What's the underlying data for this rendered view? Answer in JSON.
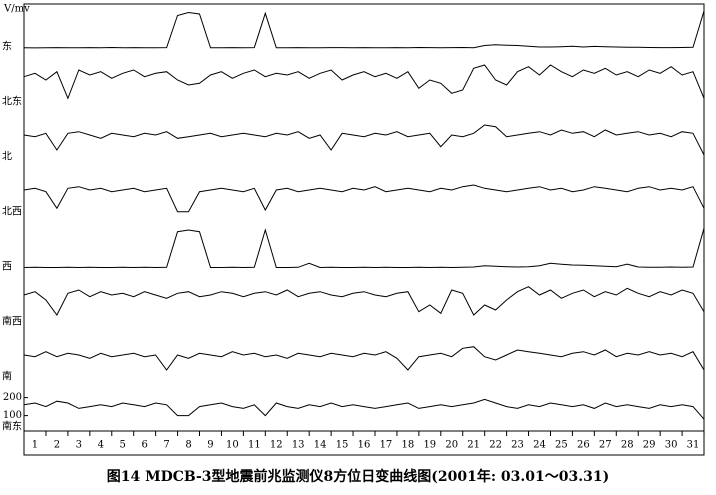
{
  "chart_data": {
    "type": "line",
    "title": "图14  MDCB-3型地震前兆监测仪8方位日变曲线图(2001年: 03.01～03.31)",
    "ylabel": "V/mv",
    "xlim": [
      0.5,
      31.5
    ],
    "xticks": [
      1,
      2,
      3,
      4,
      5,
      6,
      7,
      8,
      9,
      10,
      11,
      12,
      13,
      14,
      15,
      16,
      17,
      18,
      19,
      20,
      21,
      22,
      23,
      24,
      25,
      26,
      27,
      28,
      29,
      30,
      31
    ],
    "x": [
      0.5,
      1,
      1.5,
      2,
      2.5,
      3,
      3.5,
      4,
      4.5,
      5,
      5.5,
      6,
      6.5,
      7,
      7.5,
      8,
      8.5,
      9,
      9.5,
      10,
      10.5,
      11,
      11.5,
      12,
      12.5,
      13,
      13.5,
      14,
      14.5,
      15,
      15.5,
      16,
      16.5,
      17,
      17.5,
      18,
      18.5,
      19,
      19.5,
      20,
      20.5,
      21,
      21.5,
      22,
      22.5,
      23,
      23.5,
      24,
      24.5,
      25,
      25.5,
      26,
      26.5,
      27,
      27.5,
      28,
      28.5,
      29,
      29.5,
      30,
      30.5,
      31,
      31.5
    ],
    "series": [
      {
        "name": "东",
        "color": "#000000",
        "ylim": [
          0,
          300
        ],
        "values": [
          15,
          14,
          15,
          16,
          15,
          15,
          16,
          15,
          17,
          15,
          16,
          15,
          15,
          16,
          230,
          250,
          240,
          15,
          15,
          16,
          15,
          16,
          245,
          15,
          15,
          16,
          15,
          15,
          16,
          16,
          15,
          16,
          15,
          15,
          16,
          15,
          17,
          16,
          15,
          16,
          17,
          15,
          30,
          35,
          32,
          30,
          25,
          20,
          20,
          22,
          25,
          20,
          24,
          22,
          20,
          18,
          18,
          17,
          16,
          16,
          17,
          18,
          260
        ]
      },
      {
        "name": "北东",
        "color": "#000000",
        "ylim": [
          0,
          300
        ],
        "values": [
          170,
          190,
          150,
          200,
          40,
          210,
          180,
          200,
          160,
          190,
          210,
          170,
          190,
          200,
          150,
          120,
          130,
          180,
          200,
          160,
          190,
          210,
          170,
          190,
          180,
          200,
          160,
          190,
          210,
          150,
          180,
          200,
          170,
          190,
          160,
          200,
          100,
          150,
          130,
          70,
          90,
          220,
          240,
          150,
          120,
          200,
          230,
          180,
          240,
          200,
          170,
          210,
          190,
          220,
          180,
          200,
          170,
          210,
          190,
          230,
          180,
          200,
          40
        ]
      },
      {
        "name": "北",
        "color": "#000000",
        "ylim": [
          0,
          300
        ],
        "values": [
          150,
          140,
          160,
          60,
          160,
          170,
          150,
          130,
          160,
          150,
          140,
          160,
          150,
          170,
          130,
          140,
          150,
          160,
          140,
          150,
          160,
          150,
          140,
          160,
          150,
          170,
          130,
          150,
          60,
          160,
          150,
          140,
          160,
          150,
          170,
          140,
          150,
          160,
          80,
          150,
          140,
          160,
          210,
          200,
          140,
          150,
          160,
          170,
          150,
          180,
          160,
          170,
          140,
          180,
          150,
          160,
          170,
          150,
          160,
          140,
          170,
          160,
          30
        ]
      },
      {
        "name": "北西",
        "color": "#000000",
        "ylim": [
          0,
          300
        ],
        "values": [
          150,
          160,
          140,
          40,
          160,
          170,
          150,
          160,
          140,
          150,
          160,
          140,
          150,
          160,
          20,
          20,
          140,
          150,
          160,
          150,
          140,
          160,
          30,
          150,
          160,
          140,
          150,
          160,
          150,
          140,
          160,
          150,
          170,
          140,
          150,
          160,
          150,
          140,
          160,
          150,
          170,
          180,
          160,
          150,
          140,
          150,
          160,
          170,
          150,
          160,
          140,
          150,
          170,
          160,
          150,
          140,
          160,
          170,
          150,
          160,
          150,
          170,
          40
        ]
      },
      {
        "name": "西",
        "color": "#000000",
        "ylim": [
          0,
          300
        ],
        "values": [
          15,
          16,
          15,
          15,
          16,
          15,
          16,
          15,
          15,
          16,
          15,
          16,
          15,
          16,
          230,
          240,
          230,
          15,
          15,
          16,
          15,
          16,
          240,
          15,
          15,
          16,
          40,
          15,
          16,
          15,
          15,
          16,
          15,
          16,
          15,
          15,
          16,
          15,
          16,
          15,
          16,
          18,
          25,
          22,
          20,
          18,
          20,
          25,
          40,
          35,
          30,
          28,
          25,
          22,
          20,
          35,
          18,
          17,
          16,
          18,
          17,
          18,
          250
        ]
      },
      {
        "name": "南西",
        "color": "#000000",
        "ylim": [
          0,
          300
        ],
        "values": [
          180,
          200,
          150,
          60,
          190,
          210,
          170,
          200,
          180,
          190,
          170,
          200,
          180,
          160,
          190,
          200,
          170,
          180,
          200,
          190,
          170,
          190,
          200,
          180,
          210,
          170,
          190,
          200,
          180,
          170,
          190,
          200,
          180,
          170,
          190,
          200,
          80,
          120,
          70,
          210,
          190,
          60,
          120,
          90,
          150,
          200,
          230,
          180,
          210,
          160,
          190,
          210,
          170,
          200,
          180,
          220,
          190,
          170,
          200,
          180,
          210,
          190,
          80
        ]
      },
      {
        "name": "南",
        "color": "#000000",
        "ylim": [
          0,
          300
        ],
        "values": [
          150,
          140,
          170,
          140,
          160,
          150,
          130,
          160,
          140,
          150,
          160,
          140,
          150,
          60,
          150,
          130,
          160,
          150,
          140,
          170,
          150,
          160,
          140,
          150,
          130,
          160,
          150,
          140,
          160,
          150,
          140,
          160,
          150,
          170,
          130,
          60,
          140,
          150,
          160,
          140,
          190,
          200,
          140,
          120,
          150,
          180,
          170,
          160,
          150,
          140,
          160,
          170,
          150,
          180,
          140,
          160,
          150,
          170,
          150,
          160,
          140,
          170,
          60
        ]
      },
      {
        "name": "南东",
        "color": "#000000",
        "ylim": [
          20,
          270
        ],
        "yticks": [
          100,
          200
        ],
        "values": [
          160,
          170,
          150,
          180,
          170,
          140,
          150,
          160,
          150,
          170,
          160,
          150,
          170,
          160,
          100,
          100,
          150,
          160,
          170,
          150,
          140,
          160,
          100,
          170,
          150,
          140,
          160,
          150,
          170,
          150,
          160,
          150,
          140,
          150,
          160,
          170,
          140,
          150,
          160,
          150,
          160,
          170,
          190,
          170,
          150,
          140,
          160,
          150,
          170,
          160,
          150,
          160,
          140,
          170,
          150,
          160,
          150,
          140,
          160,
          150,
          160,
          150,
          80
        ]
      }
    ]
  }
}
